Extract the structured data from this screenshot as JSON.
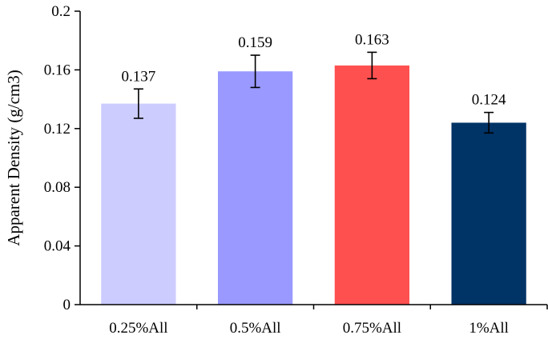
{
  "chart_data": {
    "type": "bar",
    "title": "",
    "xlabel": "",
    "ylabel": "Apparent Density (g/cm3)",
    "ylim": [
      0,
      0.2
    ],
    "yticks": [
      "0",
      "0.04",
      "0.08",
      "0.12",
      "0.16",
      "0.2"
    ],
    "ytick_values": [
      0,
      0.04,
      0.08,
      0.12,
      0.16,
      0.2
    ],
    "grid": false,
    "legend": "none",
    "categories": [
      "0.25%All",
      "0.5%All",
      "0.75%All",
      "1%All"
    ],
    "values": [
      0.137,
      0.159,
      0.163,
      0.124
    ],
    "data_labels": [
      "0.137",
      "0.159",
      "0.163",
      "0.124"
    ],
    "error_low": [
      0.127,
      0.148,
      0.154,
      0.117
    ],
    "error_high": [
      0.147,
      0.17,
      0.172,
      0.131
    ],
    "colors": [
      "#ccccff",
      "#9999ff",
      "#ff5050",
      "#003366"
    ]
  }
}
